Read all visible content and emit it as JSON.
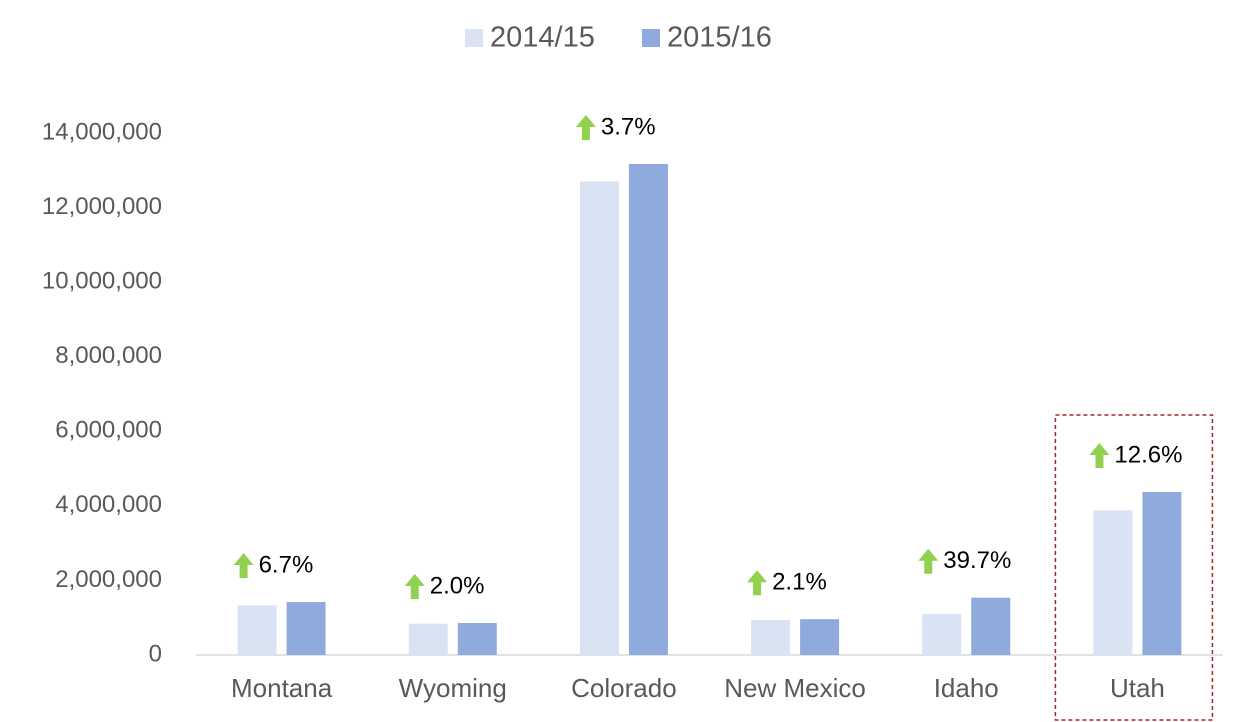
{
  "chart_data": {
    "type": "bar",
    "categories": [
      "Montana",
      "Wyoming",
      "Colorado",
      "New Mexico",
      "Idaho",
      "Utah"
    ],
    "series": [
      {
        "name": "2014/15",
        "color": "#dae3f3",
        "values": [
          1330000,
          840000,
          12700000,
          940000,
          1100000,
          3880000
        ]
      },
      {
        "name": "2015/16",
        "color": "#8faadc",
        "values": [
          1420000,
          857000,
          13170000,
          960000,
          1537000,
          4370000
        ]
      }
    ],
    "growth_labels": [
      "6.7%",
      "2.0%",
      "3.7%",
      "2.1%",
      "39.7%",
      "12.6%"
    ],
    "ylim": [
      0,
      14000000
    ],
    "yticks": [
      0,
      {
        "value": 2000000,
        "label": "2,000,000"
      },
      {
        "value": 4000000,
        "label": "4,000,000"
      },
      {
        "value": 6000000,
        "label": "6,000,000"
      },
      {
        "value": 8000000,
        "label": "8,000,000"
      },
      {
        "value": 10000000,
        "label": "10,000,000"
      },
      {
        "value": 12000000,
        "label": "12,000,000"
      },
      {
        "value": 14000000,
        "label": "14,000,000"
      }
    ],
    "grid": false,
    "legend": "top"
  }
}
